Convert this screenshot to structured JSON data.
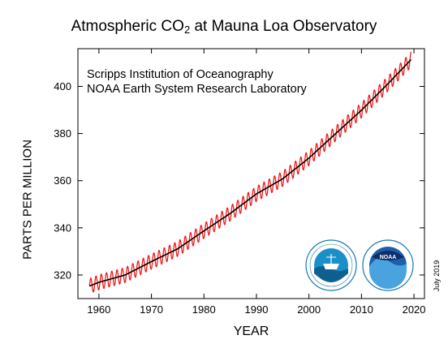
{
  "chart_data": {
    "type": "line",
    "title": {
      "prefix": "Atmospheric CO",
      "subscript": "2",
      "suffix": " at Mauna Loa Observatory"
    },
    "credits": [
      "Scripps Institution of Oceanography",
      "NOAA Earth System Research Laboratory"
    ],
    "xlabel": "YEAR",
    "ylabel": "PARTS PER MILLION",
    "date_stamp": "July 2019",
    "xlim": [
      1956,
      2022
    ],
    "ylim": [
      310,
      416
    ],
    "xticks": [
      1960,
      1970,
      1980,
      1990,
      2000,
      2010,
      2020
    ],
    "yticks": [
      320,
      340,
      360,
      380,
      400
    ],
    "grid": false,
    "seasonal_amplitude_ppm": 3.2,
    "colors": {
      "monthly": "#ee1c1c",
      "trend": "#000000"
    },
    "series": [
      {
        "style": "monthly",
        "x": [
          1958.2,
          1960,
          1965,
          1970,
          1975,
          1980,
          1985,
          1990,
          1995,
          2000,
          2005,
          2010,
          2015,
          2019.5
        ],
        "values": [
          315.3,
          316.9,
          320.0,
          325.7,
          331.1,
          338.7,
          346.1,
          354.4,
          360.8,
          369.6,
          379.8,
          389.9,
          401.0,
          411.5
        ],
        "oscillate": true
      },
      {
        "style": "trend",
        "x": [
          1958.2,
          1960,
          1965,
          1970,
          1975,
          1980,
          1985,
          1990,
          1995,
          2000,
          2005,
          2010,
          2015,
          2019.5
        ],
        "values": [
          315.3,
          316.9,
          320.0,
          325.7,
          331.1,
          338.7,
          346.1,
          354.4,
          360.8,
          369.6,
          379.8,
          389.9,
          401.0,
          411.5
        ]
      }
    ]
  }
}
